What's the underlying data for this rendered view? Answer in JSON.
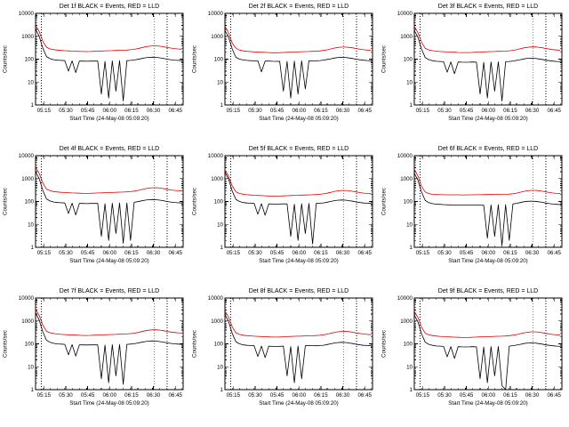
{
  "page": {
    "background": "#ffffff",
    "foreground": "#000000",
    "accent_red": "#dd0000"
  },
  "chart_common": {
    "type": "line",
    "xlabel": "Start Time (24-May-08 05:09:20)",
    "ylabel": "Counts/sec",
    "y_scale": "log",
    "ylim": [
      1,
      10000
    ],
    "ytick_values": [
      1,
      10,
      100,
      1000,
      10000
    ],
    "ytick_labels": [
      "1",
      "10",
      "100",
      "1000",
      "10000"
    ],
    "xlim_minutes": [
      0,
      101
    ],
    "xticks_minutes": [
      5.667,
      20.667,
      35.667,
      50.667,
      65.667,
      80.667,
      95.667
    ],
    "xtick_labels": [
      "05:15",
      "05:30",
      "05:45",
      "06:00",
      "06:15",
      "06:30",
      "06:45"
    ],
    "x_minor_step_minutes": 5,
    "vlines_minutes": [
      4,
      81,
      90
    ],
    "vline_style": "dotted",
    "grid": false,
    "legend": [
      {
        "name": "Events",
        "color": "#000000"
      },
      {
        "name": "LLD",
        "color": "#dd0000"
      }
    ],
    "x_minutes": [
      0,
      2.5,
      5,
      7.5,
      10,
      12.5,
      15,
      17.5,
      20,
      22.5,
      25,
      27.5,
      30,
      32.5,
      35,
      37.5,
      40,
      42.5,
      45,
      47.5,
      50,
      52.5,
      55,
      57.5,
      60,
      62.5,
      65,
      67.5,
      70,
      72.5,
      75,
      77.5,
      80,
      82.5,
      85,
      87.5,
      90,
      92.5,
      95,
      97.5,
      100
    ]
  },
  "chart_data": [
    {
      "type": "line",
      "title": "Det 1f BLACK = Events, RED = LLD",
      "series": [
        {
          "name": "Events",
          "color": "#000000",
          "values": [
            2000,
            1000,
            300,
            130,
            105,
            95,
            90,
            88,
            86,
            30,
            84,
            26,
            83,
            82,
            81,
            82,
            83,
            82,
            3,
            80,
            2,
            84,
            4,
            86,
            1.5,
            86,
            88,
            92,
            98,
            106,
            114,
            120,
            122,
            120,
            114,
            108,
            100,
            95,
            91,
            88,
            86
          ]
        },
        {
          "name": "LLD",
          "color": "#dd0000",
          "values": [
            3000,
            1600,
            600,
            330,
            280,
            260,
            248,
            240,
            234,
            230,
            226,
            222,
            218,
            215,
            214,
            216,
            220,
            224,
            228,
            231,
            234,
            237,
            240,
            243,
            246,
            250,
            258,
            270,
            288,
            315,
            345,
            365,
            378,
            380,
            368,
            348,
            325,
            305,
            290,
            280,
            272
          ]
        }
      ]
    },
    {
      "type": "line",
      "title": "Det 2f BLACK = Events, RED = LLD",
      "series": [
        {
          "name": "Events",
          "color": "#000000",
          "values": [
            1800,
            900,
            280,
            120,
            100,
            92,
            88,
            86,
            85,
            84,
            28,
            83,
            82,
            81,
            80,
            81,
            4,
            80,
            2,
            82,
            3,
            84,
            5,
            85,
            84,
            85,
            87,
            91,
            97,
            104,
            112,
            118,
            120,
            118,
            112,
            106,
            99,
            94,
            90,
            87,
            85
          ]
        },
        {
          "name": "LLD",
          "color": "#dd0000",
          "values": [
            2800,
            1400,
            500,
            300,
            250,
            230,
            220,
            214,
            208,
            205,
            201,
            198,
            194,
            191,
            190,
            192,
            196,
            199,
            203,
            206,
            208,
            211,
            214,
            216,
            219,
            222,
            229,
            240,
            256,
            280,
            307,
            325,
            336,
            338,
            327,
            310,
            289,
            271,
            258,
            249,
            242
          ]
        }
      ]
    },
    {
      "type": "line",
      "title": "Det 3f BLACK = Events, RED = LLD",
      "series": [
        {
          "name": "Events",
          "color": "#000000",
          "values": [
            1800,
            900,
            270,
            117,
            95,
            86,
            81,
            79,
            77,
            27,
            76,
            23,
            75,
            74,
            73,
            74,
            75,
            74,
            3,
            72,
            2,
            76,
            4,
            77,
            1.5,
            77,
            79,
            83,
            88,
            95,
            103,
            108,
            110,
            108,
            103,
            97,
            90,
            86,
            82,
            79,
            77
          ]
        },
        {
          "name": "LLD",
          "color": "#dd0000",
          "values": [
            2700,
            1440,
            540,
            297,
            252,
            234,
            223,
            216,
            211,
            207,
            203,
            200,
            196,
            194,
            193,
            194,
            198,
            202,
            205,
            208,
            211,
            213,
            216,
            219,
            221,
            225,
            232,
            243,
            259,
            284,
            311,
            329,
            340,
            342,
            331,
            313,
            293,
            275,
            261,
            252,
            245
          ]
        }
      ]
    },
    {
      "type": "line",
      "title": "Det 4f BLACK = Events, RED = LLD",
      "series": [
        {
          "name": "Events",
          "color": "#000000",
          "values": [
            2000,
            1000,
            300,
            130,
            105,
            95,
            90,
            88,
            86,
            30,
            84,
            26,
            83,
            82,
            81,
            82,
            83,
            82,
            3,
            80,
            2,
            84,
            4,
            86,
            1.5,
            86,
            2,
            92,
            98,
            106,
            114,
            120,
            122,
            120,
            114,
            108,
            100,
            95,
            91,
            88,
            86
          ]
        },
        {
          "name": "LLD",
          "color": "#dd0000",
          "values": [
            3150,
            1680,
            630,
            347,
            294,
            273,
            260,
            252,
            246,
            242,
            237,
            233,
            229,
            226,
            225,
            227,
            231,
            235,
            239,
            243,
            246,
            249,
            252,
            255,
            258,
            263,
            271,
            284,
            302,
            331,
            362,
            383,
            397,
            399,
            386,
            365,
            341,
            320,
            305,
            294,
            286
          ]
        }
      ]
    },
    {
      "type": "line",
      "title": "Det 5f BLACK = Events, RED = LLD",
      "series": [
        {
          "name": "Events",
          "color": "#000000",
          "values": [
            1900,
            950,
            285,
            124,
            100,
            90,
            86,
            84,
            82,
            28,
            80,
            25,
            79,
            78,
            77,
            78,
            79,
            78,
            3,
            76,
            2,
            80,
            4,
            82,
            1.4,
            82,
            84,
            87,
            93,
            101,
            108,
            114,
            116,
            114,
            108,
            103,
            95,
            90,
            86,
            84,
            82
          ]
        },
        {
          "name": "LLD",
          "color": "#dd0000",
          "values": [
            2400,
            1280,
            480,
            264,
            224,
            208,
            198,
            192,
            187,
            184,
            181,
            178,
            174,
            172,
            171,
            173,
            176,
            179,
            182,
            185,
            187,
            190,
            192,
            194,
            197,
            200,
            206,
            216,
            230,
            252,
            276,
            292,
            302,
            304,
            294,
            278,
            260,
            244,
            232,
            224,
            218
          ]
        }
      ]
    },
    {
      "type": "line",
      "title": "Det 6f BLACK = Events, RED = LLD",
      "series": [
        {
          "name": "Events",
          "color": "#000000",
          "values": [
            1700,
            850,
            255,
            110,
            89,
            81,
            76,
            75,
            73,
            72,
            71,
            70,
            70,
            69,
            69,
            70,
            70,
            70,
            69,
            68,
            2.5,
            71,
            3,
            73,
            1.2,
            73,
            2,
            78,
            83,
            90,
            97,
            102,
            104,
            102,
            97,
            92,
            85,
            81,
            77,
            75,
            73
          ]
        },
        {
          "name": "LLD",
          "color": "#dd0000",
          "values": [
            2600,
            1300,
            450,
            260,
            220,
            205,
            200,
            198,
            197,
            196,
            196,
            195,
            195,
            194,
            194,
            195,
            196,
            197,
            198,
            199,
            200,
            201,
            202,
            203,
            204,
            206,
            210,
            218,
            232,
            254,
            278,
            295,
            305,
            307,
            297,
            281,
            262,
            246,
            234,
            226,
            220
          ]
        }
      ]
    },
    {
      "type": "line",
      "title": "Det 7f BLACK = Events, RED = LLD",
      "series": [
        {
          "name": "Events",
          "color": "#000000",
          "values": [
            2200,
            1100,
            330,
            143,
            116,
            105,
            99,
            97,
            95,
            33,
            92,
            29,
            91,
            90,
            89,
            90,
            91,
            90,
            3,
            88,
            2,
            92,
            4,
            95,
            1.7,
            95,
            97,
            101,
            108,
            117,
            125,
            132,
            134,
            132,
            125,
            119,
            110,
            105,
            100,
            97,
            95
          ]
        },
        {
          "name": "LLD",
          "color": "#dd0000",
          "values": [
            3240,
            1730,
            650,
            356,
            302,
            281,
            268,
            259,
            253,
            248,
            244,
            240,
            235,
            232,
            231,
            233,
            238,
            242,
            246,
            249,
            253,
            256,
            259,
            262,
            266,
            270,
            279,
            292,
            311,
            340,
            373,
            394,
            408,
            410,
            397,
            376,
            351,
            329,
            313,
            302,
            294
          ]
        }
      ]
    },
    {
      "type": "line",
      "title": "Det 8f BLACK = Events, RED = LLD",
      "series": [
        {
          "name": "Events",
          "color": "#000000",
          "values": [
            1900,
            950,
            285,
            124,
            100,
            90,
            86,
            84,
            82,
            28,
            80,
            25,
            79,
            78,
            77,
            78,
            79,
            4,
            76,
            2,
            80,
            3,
            82,
            84,
            83,
            82,
            84,
            87,
            93,
            101,
            108,
            114,
            116,
            114,
            108,
            103,
            95,
            90,
            86,
            84,
            82
          ]
        },
        {
          "name": "LLD",
          "color": "#dd0000",
          "values": [
            2760,
            1470,
            552,
            304,
            258,
            239,
            228,
            221,
            215,
            212,
            208,
            204,
            201,
            198,
            197,
            199,
            202,
            206,
            210,
            213,
            215,
            218,
            221,
            224,
            226,
            230,
            237,
            248,
            265,
            290,
            317,
            336,
            348,
            350,
            339,
            320,
            299,
            281,
            267,
            258,
            250
          ]
        }
      ]
    },
    {
      "type": "line",
      "title": "Det 9f BLACK = Events, RED = LLD",
      "series": [
        {
          "name": "Events",
          "color": "#000000",
          "values": [
            1800,
            900,
            270,
            117,
            95,
            86,
            81,
            79,
            77,
            27,
            76,
            23,
            75,
            74,
            73,
            74,
            75,
            74,
            3,
            72,
            2,
            76,
            4,
            77,
            1.5,
            1,
            79,
            83,
            88,
            95,
            103,
            108,
            110,
            108,
            103,
            97,
            90,
            86,
            82,
            79,
            77
          ]
        },
        {
          "name": "LLD",
          "color": "#dd0000",
          "values": [
            2640,
            1410,
            528,
            290,
            246,
            229,
            218,
            211,
            206,
            202,
            199,
            195,
            192,
            189,
            188,
            190,
            194,
            197,
            201,
            203,
            206,
            209,
            211,
            214,
            216,
            220,
            227,
            238,
            253,
            277,
            304,
            321,
            333,
            334,
            324,
            306,
            286,
            268,
            255,
            246,
            239
          ]
        }
      ]
    }
  ]
}
